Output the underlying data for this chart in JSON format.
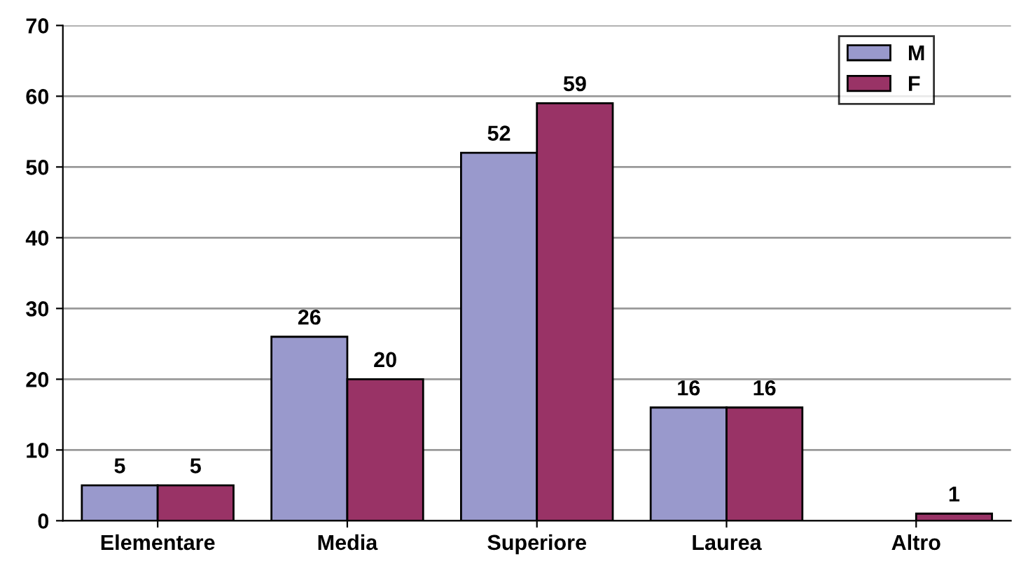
{
  "chart_data": {
    "type": "bar",
    "categories": [
      "Elementare",
      "Media",
      "Superiore",
      "Laurea",
      "Altro"
    ],
    "series": [
      {
        "name": "M",
        "color": "#9999cc",
        "values": [
          5,
          26,
          52,
          16,
          null
        ]
      },
      {
        "name": "F",
        "color": "#993366",
        "values": [
          5,
          20,
          59,
          16,
          1
        ]
      }
    ],
    "ylim": [
      0,
      70
    ],
    "yticks": [
      0,
      10,
      20,
      30,
      40,
      50,
      60,
      70
    ],
    "grid": "y",
    "legend": "top right",
    "data_labels": true
  }
}
